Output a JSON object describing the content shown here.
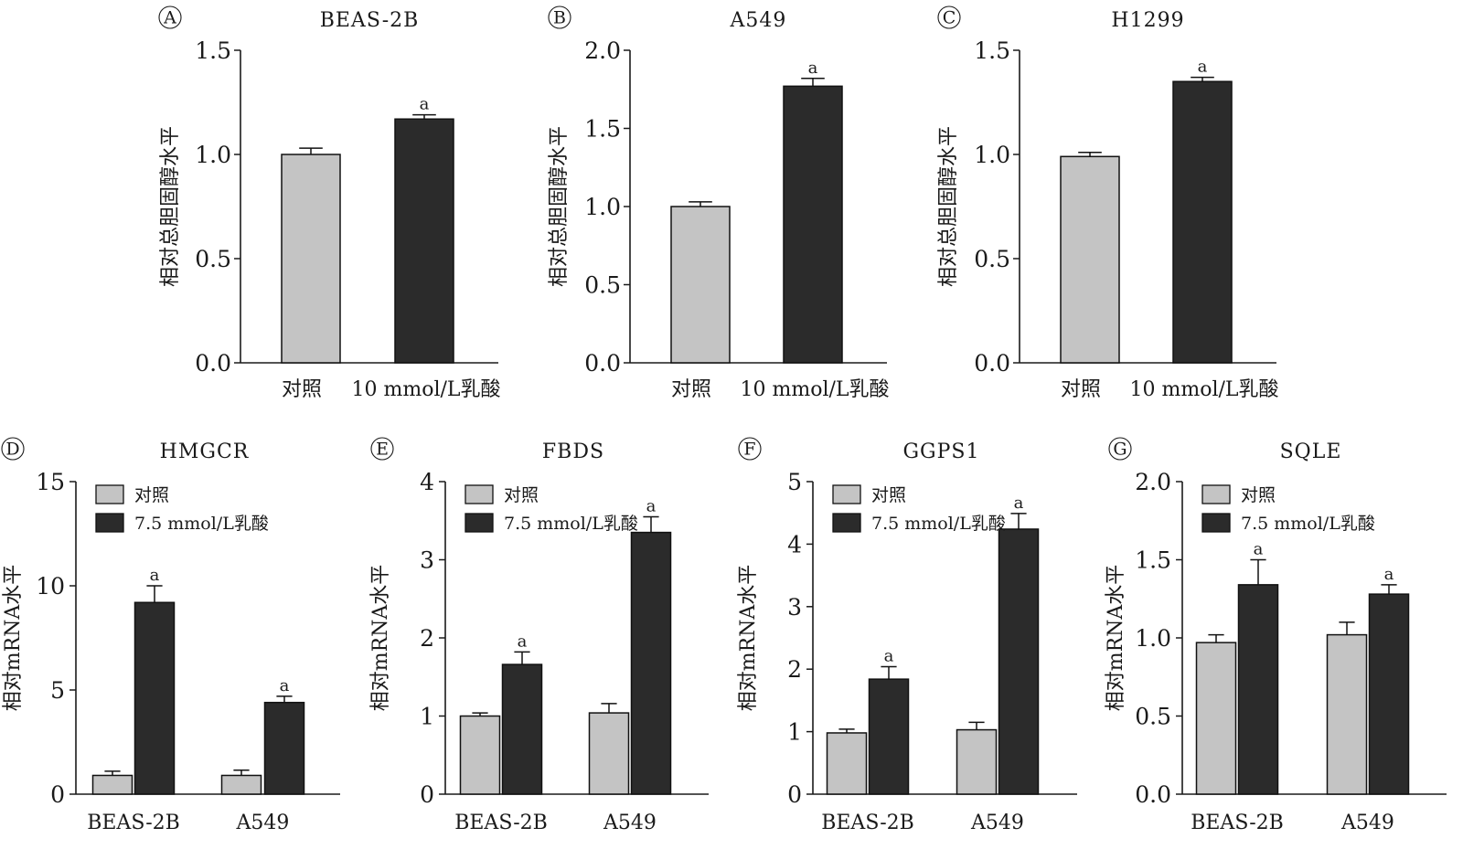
{
  "colors": {
    "control": "#c4c4c4",
    "treated": "#2b2b2b",
    "axis": "#1a1a1a"
  },
  "chart_data": [
    {
      "panel": "A",
      "type": "bar",
      "title": "BEAS-2B",
      "ylabel": "相对总胆固醇水平",
      "ylim": [
        0,
        1.5
      ],
      "yticks": [
        "0.0",
        "0.5",
        "1.0",
        "1.5"
      ],
      "categories": [
        "对照",
        "10 mmol/L乳酸"
      ],
      "values": [
        1.0,
        1.17
      ],
      "errors": [
        0.03,
        0.02
      ],
      "significance": [
        "",
        "a"
      ]
    },
    {
      "panel": "B",
      "type": "bar",
      "title": "A549",
      "ylabel": "相对总胆固醇水平",
      "ylim": [
        0,
        2.0
      ],
      "yticks": [
        "0.0",
        "0.5",
        "1.0",
        "1.5",
        "2.0"
      ],
      "categories": [
        "对照",
        "10 mmol/L乳酸"
      ],
      "values": [
        1.0,
        1.77
      ],
      "errors": [
        0.03,
        0.05
      ],
      "significance": [
        "",
        "a"
      ]
    },
    {
      "panel": "C",
      "type": "bar",
      "title": "H1299",
      "ylabel": "相对总胆固醇水平",
      "ylim": [
        0,
        1.5
      ],
      "yticks": [
        "0.0",
        "0.5",
        "1.0",
        "1.5"
      ],
      "categories": [
        "对照",
        "10 mmol/L乳酸"
      ],
      "values": [
        0.99,
        1.35
      ],
      "errors": [
        0.02,
        0.02
      ],
      "significance": [
        "",
        "a"
      ]
    },
    {
      "panel": "D",
      "type": "bar",
      "title": "HMGCR",
      "ylabel": "相对mRNA水平",
      "ylim": [
        0,
        15
      ],
      "yticks": [
        "0",
        "5",
        "10",
        "15"
      ],
      "categories": [
        "BEAS-2B",
        "A549"
      ],
      "series": [
        {
          "name": "对照",
          "values": [
            0.9,
            0.9
          ],
          "errors": [
            0.2,
            0.25
          ],
          "significance": [
            "",
            ""
          ]
        },
        {
          "name": "7.5 mmol/L乳酸",
          "values": [
            9.2,
            4.4
          ],
          "errors": [
            0.8,
            0.3
          ],
          "significance": [
            "a",
            "a"
          ]
        }
      ]
    },
    {
      "panel": "E",
      "type": "bar",
      "title": "FBDS",
      "ylabel": "相对mRNA水平",
      "ylim": [
        0,
        4
      ],
      "yticks": [
        "0",
        "1",
        "2",
        "3",
        "4"
      ],
      "categories": [
        "BEAS-2B",
        "A549"
      ],
      "series": [
        {
          "name": "对照",
          "values": [
            1.0,
            1.04
          ],
          "errors": [
            0.04,
            0.12
          ],
          "significance": [
            "",
            ""
          ]
        },
        {
          "name": "7.5 mmol/L乳酸",
          "values": [
            1.66,
            3.35
          ],
          "errors": [
            0.16,
            0.2
          ],
          "significance": [
            "a",
            "a"
          ]
        }
      ]
    },
    {
      "panel": "F",
      "type": "bar",
      "title": "GGPS1",
      "ylabel": "相对mRNA水平",
      "ylim": [
        0,
        5
      ],
      "yticks": [
        "0",
        "1",
        "2",
        "3",
        "4",
        "5"
      ],
      "categories": [
        "BEAS-2B",
        "A549"
      ],
      "series": [
        {
          "name": "对照",
          "values": [
            0.98,
            1.03
          ],
          "errors": [
            0.06,
            0.12
          ],
          "significance": [
            "",
            ""
          ]
        },
        {
          "name": "7.5 mmol/L乳酸",
          "values": [
            1.84,
            4.24
          ],
          "errors": [
            0.2,
            0.25
          ],
          "significance": [
            "a",
            "a"
          ]
        }
      ]
    },
    {
      "panel": "G",
      "type": "bar",
      "title": "SQLE",
      "ylabel": "相对mRNA水平",
      "ylim": [
        0,
        2.0
      ],
      "yticks": [
        "0.0",
        "0.5",
        "1.0",
        "1.5",
        "2.0"
      ],
      "categories": [
        "BEAS-2B",
        "A549"
      ],
      "series": [
        {
          "name": "对照",
          "values": [
            0.97,
            1.02
          ],
          "errors": [
            0.05,
            0.08
          ],
          "significance": [
            "",
            ""
          ]
        },
        {
          "name": "7.5 mmol/L乳酸",
          "values": [
            1.34,
            1.28
          ],
          "errors": [
            0.16,
            0.06
          ],
          "significance": [
            "a",
            "a"
          ]
        }
      ]
    }
  ]
}
